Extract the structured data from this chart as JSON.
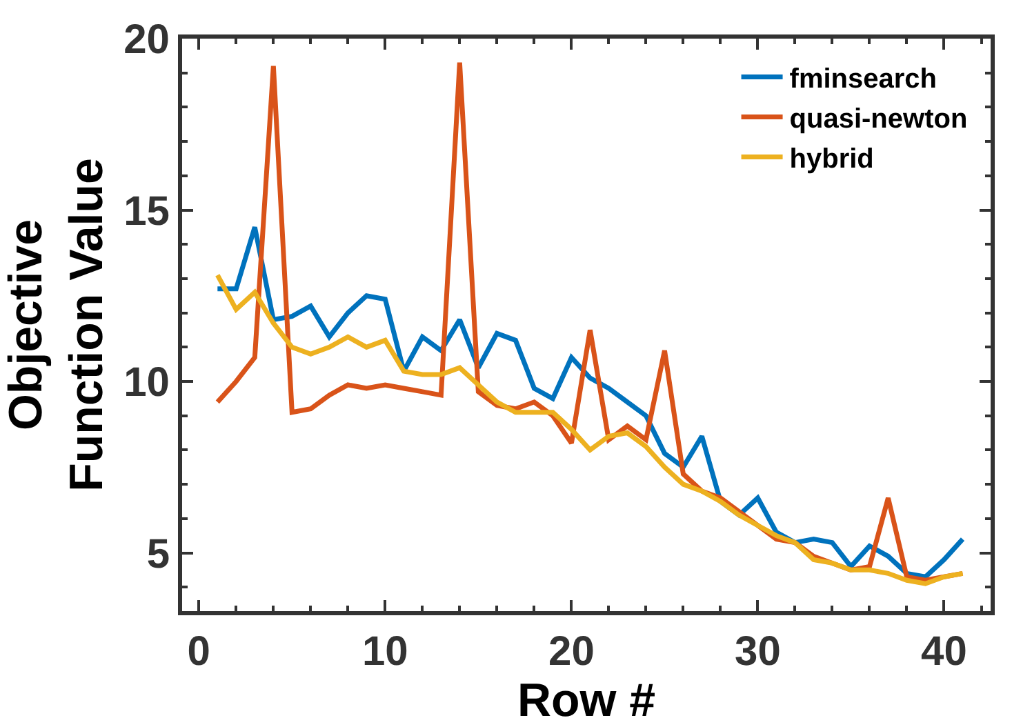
{
  "chart_data": {
    "type": "line",
    "xlabel": "Row #",
    "ylabel": "Objective\nFunction Value",
    "x": [
      1,
      2,
      3,
      4,
      5,
      6,
      7,
      8,
      9,
      10,
      11,
      12,
      13,
      14,
      15,
      16,
      17,
      18,
      19,
      20,
      21,
      22,
      23,
      24,
      25,
      26,
      27,
      28,
      29,
      30,
      31,
      32,
      33,
      34,
      35,
      36,
      37,
      38,
      39,
      40,
      41
    ],
    "series": [
      {
        "name": "fminsearch",
        "color": "#0072bd",
        "values": [
          12.7,
          12.7,
          14.5,
          11.8,
          11.9,
          12.2,
          11.3,
          12.0,
          12.5,
          12.4,
          10.3,
          11.3,
          10.9,
          11.8,
          10.4,
          11.4,
          11.2,
          9.8,
          9.5,
          10.7,
          10.1,
          9.8,
          9.4,
          9.0,
          7.9,
          7.5,
          8.4,
          6.5,
          6.1,
          6.6,
          5.6,
          5.3,
          5.4,
          5.3,
          4.6,
          5.2,
          4.9,
          4.4,
          4.3,
          4.8,
          5.4
        ]
      },
      {
        "name": "quasi-newton",
        "color": "#d95319",
        "values": [
          9.4,
          10.0,
          10.7,
          19.2,
          9.1,
          9.2,
          9.6,
          9.9,
          9.8,
          9.9,
          9.8,
          9.7,
          9.6,
          19.3,
          9.7,
          9.3,
          9.2,
          9.4,
          9.0,
          8.2,
          11.5,
          8.3,
          8.7,
          8.3,
          10.9,
          7.3,
          6.8,
          6.6,
          6.2,
          5.8,
          5.4,
          5.3,
          4.9,
          4.7,
          4.5,
          4.6,
          6.6,
          4.3,
          4.2,
          4.3,
          4.4
        ]
      },
      {
        "name": "hybrid",
        "color": "#edb120",
        "values": [
          13.1,
          12.1,
          12.6,
          11.7,
          11.0,
          10.8,
          11.0,
          11.3,
          11.0,
          11.2,
          10.3,
          10.2,
          10.2,
          10.4,
          9.9,
          9.4,
          9.1,
          9.1,
          9.1,
          8.6,
          8.0,
          8.4,
          8.5,
          8.1,
          7.5,
          7.0,
          6.8,
          6.5,
          6.1,
          5.8,
          5.5,
          5.3,
          4.8,
          4.7,
          4.5,
          4.5,
          4.4,
          4.2,
          4.1,
          4.3,
          4.4
        ]
      }
    ],
    "xlim": [
      -0.9,
      42.5
    ],
    "xticks": [
      0,
      10,
      20,
      30,
      40
    ],
    "ylim": [
      3.3,
      20
    ],
    "yticks": [
      5,
      10,
      15,
      20
    ],
    "legend": "top right",
    "marker": "none",
    "line_style": "solid"
  }
}
